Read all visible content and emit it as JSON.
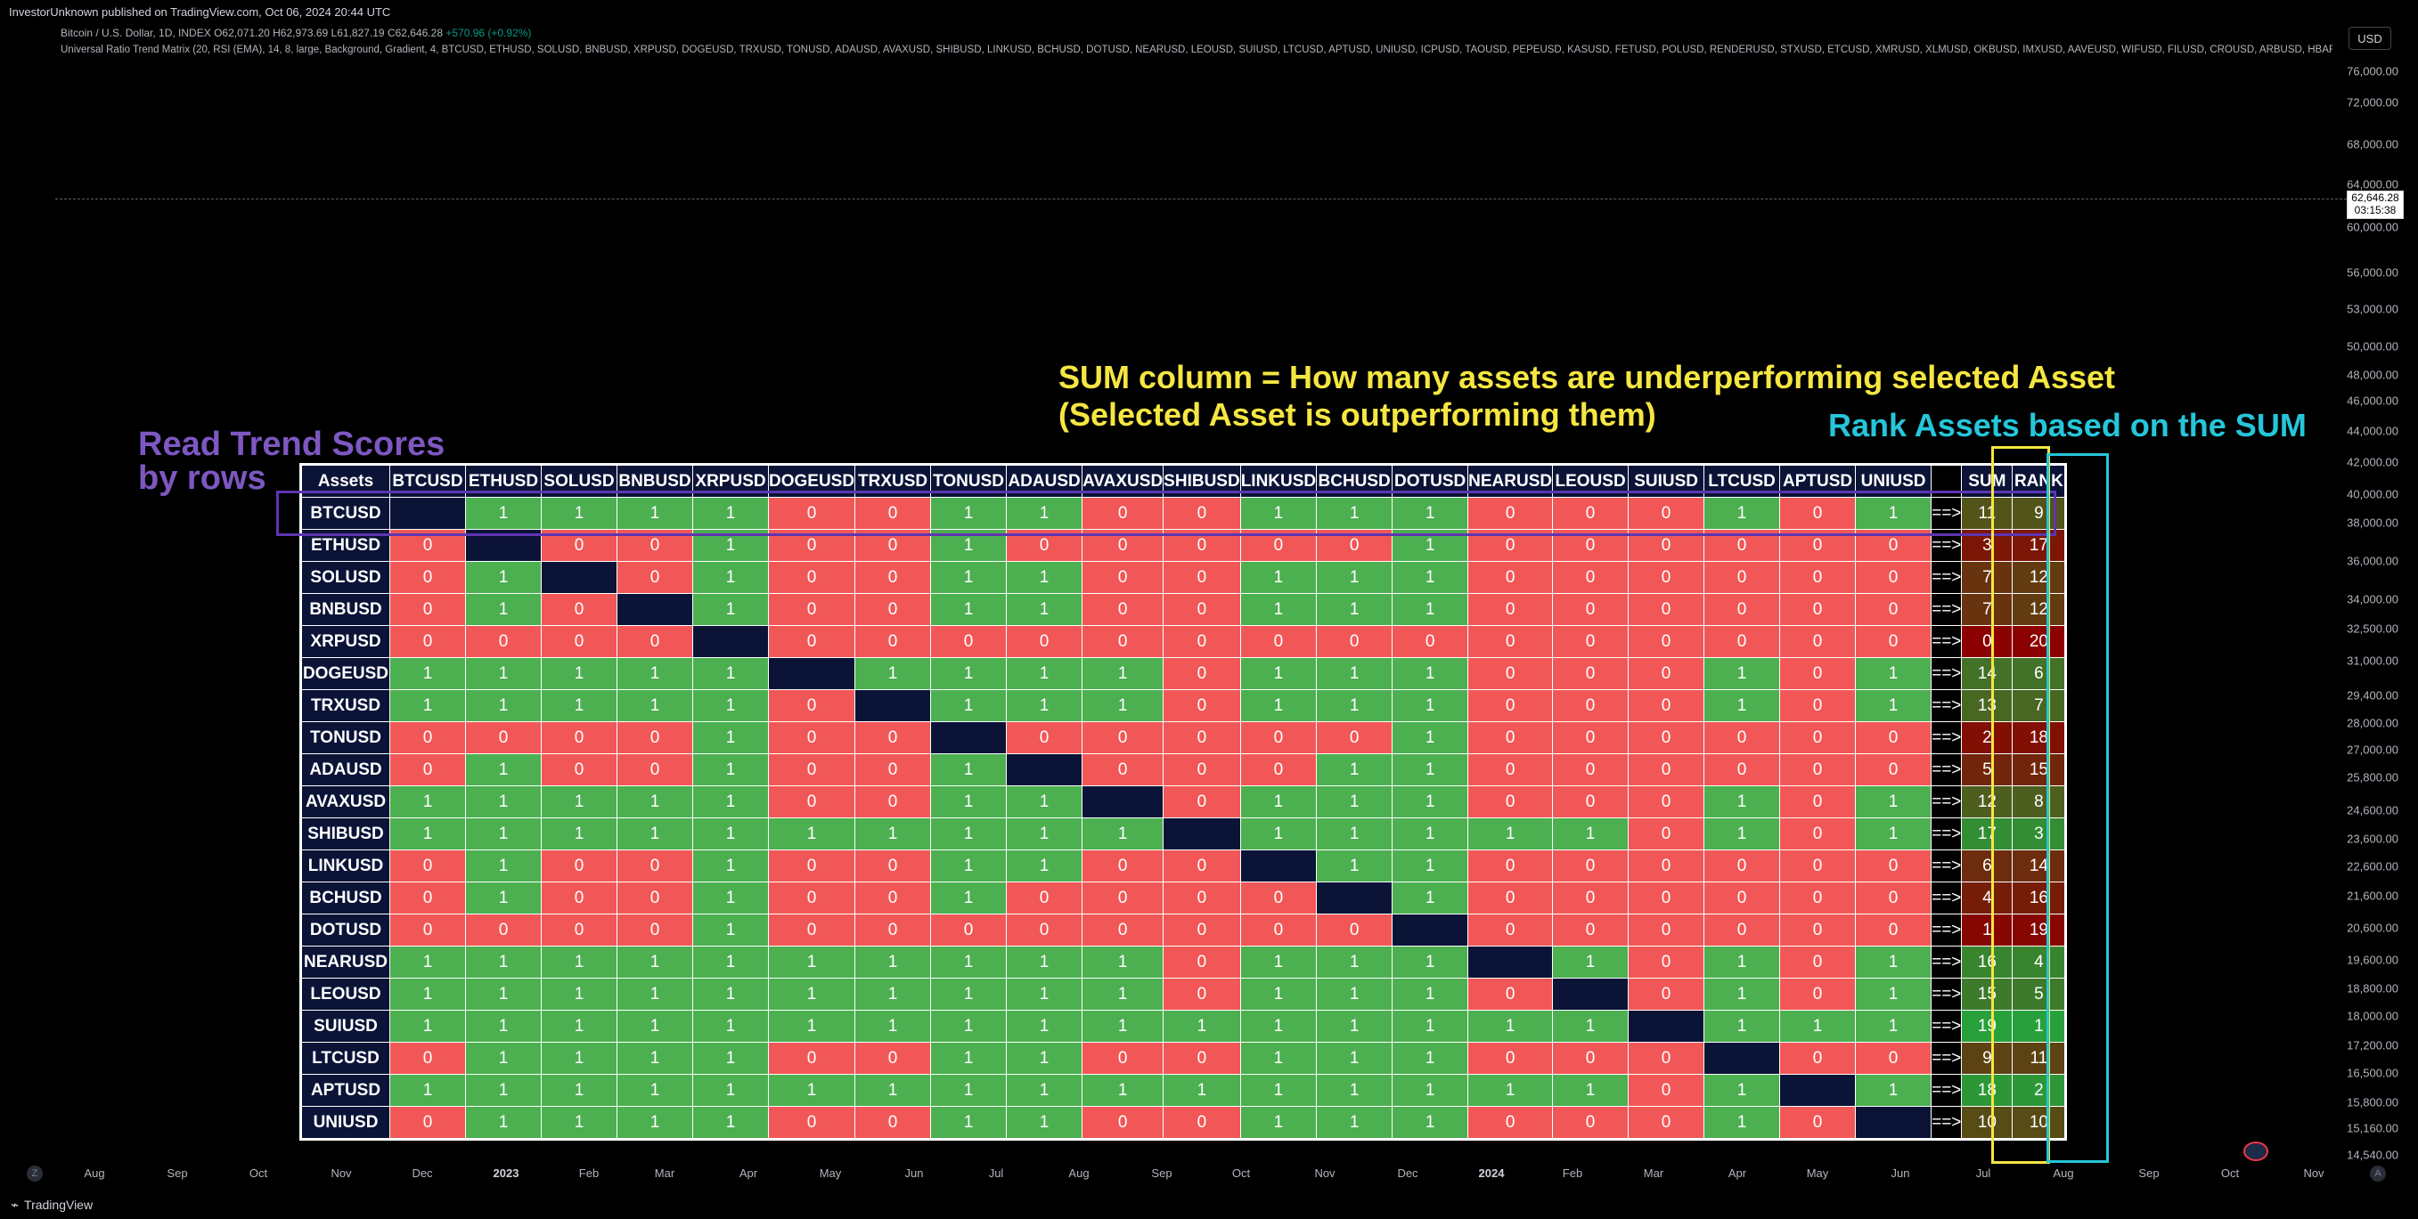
{
  "publish_line": "InvestorUnknown published on TradingView.com, Oct 06, 2024 20:44 UTC",
  "symbol_line": {
    "name": "Bitcoin / U.S. Dollar, 1D, INDEX",
    "o": "O62,071.20",
    "h": "H62,973.69",
    "l": "L61,827.19",
    "c": "C62,646.28",
    "chg": "+570.96 (+0.92%)"
  },
  "indicator_line": "Universal Ratio Trend Matrix (20, RSI (EMA), 14, 8, large, Background, Gradient, 4, BTCUSD, ETHUSD, SOLUSD, BNBUSD, XRPUSD, DOGEUSD, TRXUSD, TONUSD, ADAUSD, AVAXUSD, SHIBUSD, LINKUSD, BCHUSD, DOTUSD, NEARUSD, LEOUSD, SUIUSD, LTCUSD, APTUSD, UNIUSD, ICPUSD, TAOUSD, PEPEUSD, KASUSD, FETUSD, POLUSD, RENDERUSD, STXUSD, ETCUSD, XMRUSD, XLMUSD, OKBUSD, IMXUSD, AAVEUSD, WIFUSD, FILUSD, CROUSD, ARBUSD, HBARUSD, OPUSD)",
  "currency": "USD",
  "price_tag": {
    "price": "62,646.28",
    "timer": "03:15:38"
  },
  "y_axis": [
    "76,000.00",
    "72,000.00",
    "68,000.00",
    "64,000.00",
    "60,000.00",
    "56,000.00",
    "53,000.00",
    "50,000.00",
    "48,000.00",
    "46,000.00",
    "44,000.00",
    "42,000.00",
    "40,000.00",
    "38,000.00",
    "36,000.00",
    "34,000.00",
    "32,500.00",
    "31,000.00",
    "29,400.00",
    "28,000.00",
    "27,000.00",
    "25,800.00",
    "24,600.00",
    "23,600.00",
    "22,600.00",
    "21,600.00",
    "20,600.00",
    "19,600.00",
    "18,800.00",
    "18,000.00",
    "17,200.00",
    "16,500.00",
    "15,800.00",
    "15,160.00",
    "14,540.00"
  ],
  "x_axis": [
    "Aug",
    "Sep",
    "Oct",
    "Nov",
    "Dec",
    "2023",
    "Feb",
    "Mar",
    "Apr",
    "May",
    "Jun",
    "Jul",
    "Aug",
    "Sep",
    "Oct",
    "Nov",
    "Dec",
    "2024",
    "Feb",
    "Mar",
    "Apr",
    "May",
    "Jun",
    "Jul",
    "Aug",
    "Sep",
    "Oct",
    "Nov"
  ],
  "axis_buttons": {
    "left": "Z",
    "right": "A"
  },
  "footer_brand": "TradingView",
  "annotations": {
    "read_rows_1": "Read Trend Scores",
    "read_rows_2": "by rows",
    "sum_line_1": "SUM column = How many assets are underperforming selected Asset",
    "sum_line_2": "(Selected Asset is outperforming them)",
    "rank_line": "Rank Assets based on the SUM"
  },
  "matrix": {
    "header_assets": "Assets",
    "columns": [
      "BTCUSD",
      "ETHUSD",
      "SOLUSD",
      "BNBUSD",
      "XRPUSD",
      "DOGEUSD",
      "TRXUSD",
      "TONUSD",
      "ADAUSD",
      "AVAXUSD",
      "SHIBUSD",
      "LINKUSD",
      "BCHUSD",
      "DOTUSD",
      "NEARUSD",
      "LEOUSD",
      "SUIUSD",
      "LTCUSD",
      "APTUSD",
      "UNIUSD"
    ],
    "arrow_label": "==>",
    "sum_label": "SUM",
    "rank_label": "RANK",
    "rows": [
      {
        "asset": "BTCUSD",
        "values": [
          null,
          1,
          1,
          1,
          1,
          0,
          0,
          1,
          1,
          0,
          0,
          1,
          1,
          1,
          0,
          0,
          0,
          1,
          0,
          1
        ],
        "sum": "11",
        "rank": "9"
      },
      {
        "asset": "ETHUSD",
        "values": [
          0,
          null,
          0,
          0,
          1,
          0,
          0,
          1,
          0,
          0,
          0,
          0,
          0,
          1,
          0,
          0,
          0,
          0,
          0,
          0
        ],
        "sum": "3",
        "rank": "17"
      },
      {
        "asset": "SOLUSD",
        "values": [
          0,
          1,
          null,
          0,
          1,
          0,
          0,
          1,
          1,
          0,
          0,
          1,
          1,
          1,
          0,
          0,
          0,
          0,
          0,
          0
        ],
        "sum": "7",
        "rank": "12"
      },
      {
        "asset": "BNBUSD",
        "values": [
          0,
          1,
          0,
          null,
          1,
          0,
          0,
          1,
          1,
          0,
          0,
          1,
          1,
          1,
          0,
          0,
          0,
          0,
          0,
          0
        ],
        "sum": "7",
        "rank": "12"
      },
      {
        "asset": "XRPUSD",
        "values": [
          0,
          0,
          0,
          0,
          null,
          0,
          0,
          0,
          0,
          0,
          0,
          0,
          0,
          0,
          0,
          0,
          0,
          0,
          0,
          0
        ],
        "sum": "0",
        "rank": "20"
      },
      {
        "asset": "DOGEUSD",
        "values": [
          1,
          1,
          1,
          1,
          1,
          null,
          1,
          1,
          1,
          1,
          0,
          1,
          1,
          1,
          0,
          0,
          0,
          1,
          0,
          1
        ],
        "sum": "14",
        "rank": "6"
      },
      {
        "asset": "TRXUSD",
        "values": [
          1,
          1,
          1,
          1,
          1,
          0,
          null,
          1,
          1,
          1,
          0,
          1,
          1,
          1,
          0,
          0,
          0,
          1,
          0,
          1
        ],
        "sum": "13",
        "rank": "7"
      },
      {
        "asset": "TONUSD",
        "values": [
          0,
          0,
          0,
          0,
          1,
          0,
          0,
          null,
          0,
          0,
          0,
          0,
          0,
          1,
          0,
          0,
          0,
          0,
          0,
          0
        ],
        "sum": "2",
        "rank": "18"
      },
      {
        "asset": "ADAUSD",
        "values": [
          0,
          1,
          0,
          0,
          1,
          0,
          0,
          1,
          null,
          0,
          0,
          0,
          1,
          1,
          0,
          0,
          0,
          0,
          0,
          0
        ],
        "sum": "5",
        "rank": "15"
      },
      {
        "asset": "AVAXUSD",
        "values": [
          1,
          1,
          1,
          1,
          1,
          0,
          0,
          1,
          1,
          null,
          0,
          1,
          1,
          1,
          0,
          0,
          0,
          1,
          0,
          1
        ],
        "sum": "12",
        "rank": "8"
      },
      {
        "asset": "SHIBUSD",
        "values": [
          1,
          1,
          1,
          1,
          1,
          1,
          1,
          1,
          1,
          1,
          null,
          1,
          1,
          1,
          1,
          1,
          0,
          1,
          0,
          1
        ],
        "sum": "17",
        "rank": "3"
      },
      {
        "asset": "LINKUSD",
        "values": [
          0,
          1,
          0,
          0,
          1,
          0,
          0,
          1,
          1,
          0,
          0,
          null,
          1,
          1,
          0,
          0,
          0,
          0,
          0,
          0
        ],
        "sum": "6",
        "rank": "14"
      },
      {
        "asset": "BCHUSD",
        "values": [
          0,
          1,
          0,
          0,
          1,
          0,
          0,
          1,
          0,
          0,
          0,
          0,
          null,
          1,
          0,
          0,
          0,
          0,
          0,
          0
        ],
        "sum": "4",
        "rank": "16"
      },
      {
        "asset": "DOTUSD",
        "values": [
          0,
          0,
          0,
          0,
          1,
          0,
          0,
          0,
          0,
          0,
          0,
          0,
          0,
          null,
          0,
          0,
          0,
          0,
          0,
          0
        ],
        "sum": "1",
        "rank": "19"
      },
      {
        "asset": "NEARUSD",
        "values": [
          1,
          1,
          1,
          1,
          1,
          1,
          1,
          1,
          1,
          1,
          0,
          1,
          1,
          1,
          null,
          1,
          0,
          1,
          0,
          1
        ],
        "sum": "16",
        "rank": "4"
      },
      {
        "asset": "LEOUSD",
        "values": [
          1,
          1,
          1,
          1,
          1,
          1,
          1,
          1,
          1,
          1,
          0,
          1,
          1,
          1,
          0,
          null,
          0,
          1,
          0,
          1
        ],
        "sum": "15",
        "rank": "5"
      },
      {
        "asset": "SUIUSD",
        "values": [
          1,
          1,
          1,
          1,
          1,
          1,
          1,
          1,
          1,
          1,
          1,
          1,
          1,
          1,
          1,
          1,
          null,
          1,
          1,
          1
        ],
        "sum": "19",
        "rank": "1"
      },
      {
        "asset": "LTCUSD",
        "values": [
          0,
          1,
          1,
          1,
          1,
          0,
          0,
          1,
          1,
          0,
          0,
          1,
          1,
          1,
          0,
          0,
          0,
          null,
          0,
          0
        ],
        "sum": "9",
        "rank": "11"
      },
      {
        "asset": "APTUSD",
        "values": [
          1,
          1,
          1,
          1,
          1,
          1,
          1,
          1,
          1,
          1,
          1,
          1,
          1,
          1,
          1,
          1,
          0,
          1,
          null,
          1
        ],
        "sum": "18",
        "rank": "2"
      },
      {
        "asset": "UNIUSD",
        "values": [
          0,
          1,
          1,
          1,
          1,
          0,
          0,
          1,
          1,
          0,
          0,
          1,
          1,
          1,
          0,
          0,
          0,
          1,
          0,
          null
        ],
        "sum": "10",
        "rank": "10"
      }
    ]
  },
  "colors": {
    "green": "#4caf50",
    "red": "#f25757",
    "navy": "#0b1437",
    "sum_high": "#4a7a2a",
    "sum_low": "#8b0000"
  }
}
